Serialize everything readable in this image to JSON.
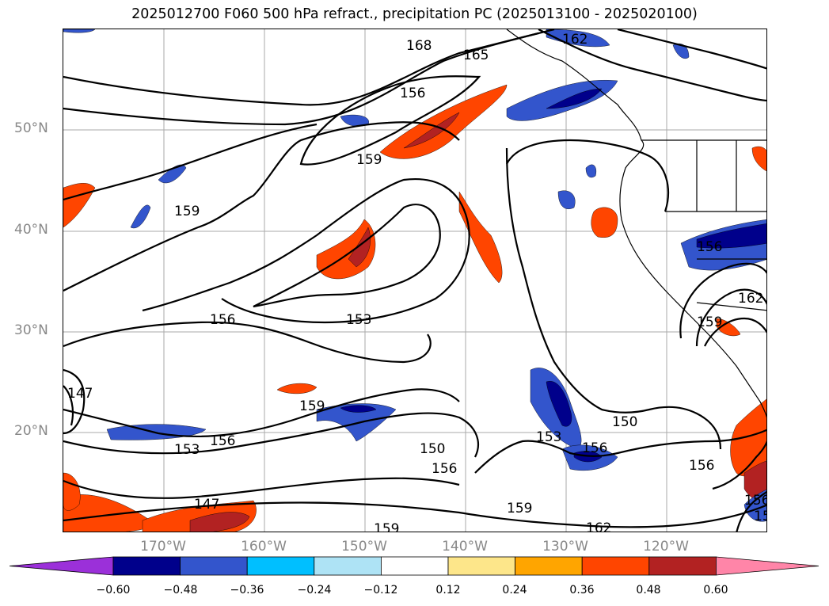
{
  "title": "2025012700 F060 500 hPa refract., precipitation PC (2025013100 - 2025020100)",
  "lat_labels": [
    "50°N",
    "40°N",
    "30°N",
    "20°N"
  ],
  "lon_labels": [
    "170°W",
    "160°W",
    "150°W",
    "140°W",
    "130°W",
    "120°W"
  ],
  "contour_labels": [
    "168",
    "165",
    "162",
    "156",
    "159",
    "159",
    "153",
    "156",
    "147",
    "159",
    "156",
    "153",
    "150",
    "156",
    "153",
    "150",
    "156",
    "159",
    "162",
    "147",
    "159",
    "156",
    "162",
    "159",
    "156",
    "156",
    "153"
  ],
  "colorbar": {
    "ticks": [
      "−0.60",
      "−0.48",
      "−0.36",
      "−0.24",
      "−0.12",
      "0.12",
      "0.24",
      "0.36",
      "0.48",
      "0.60"
    ],
    "colors": [
      "#9b30d9",
      "#00008b",
      "#3355cc",
      "#00bfff",
      "#aee3f5",
      "#ffffff",
      "#fde68a",
      "#ffa500",
      "#ff4500",
      "#b22222",
      "#ff85a8"
    ]
  }
}
